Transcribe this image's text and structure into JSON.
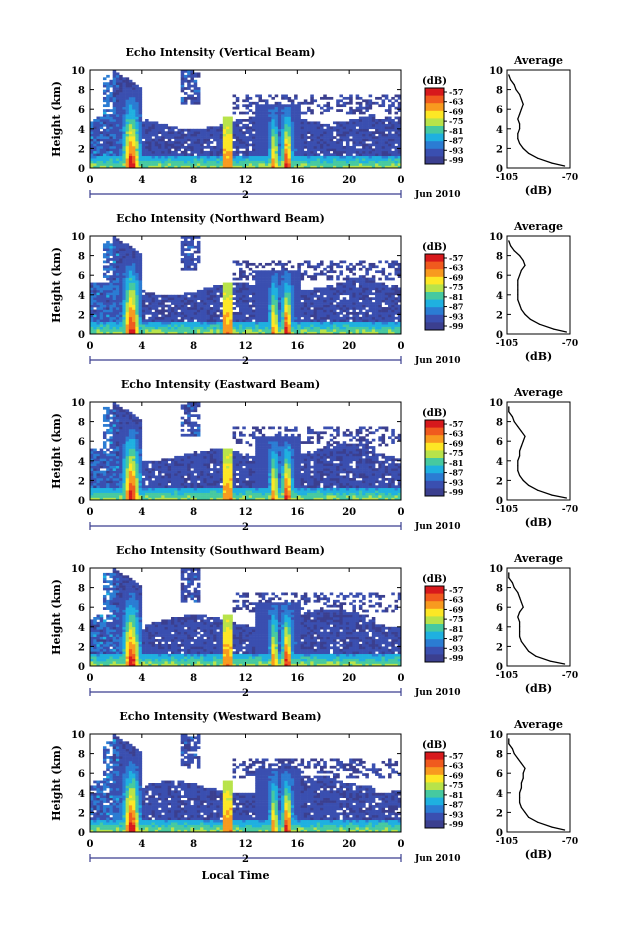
{
  "figure": {
    "date_label": "Jun 2010",
    "local_time_label": "Local Time",
    "colorbar_unit": "(dB)",
    "colorbar_ticks": [
      "-57",
      "-63",
      "-69",
      "-75",
      "-81",
      "-87",
      "-93",
      "-99"
    ],
    "colorbar_colors": [
      "#ffffff",
      "#d7191c",
      "#f05a1e",
      "#f89a1f",
      "#fde725",
      "#b8e34a",
      "#46c9a0",
      "#1fb0e0",
      "#2b7cd3",
      "#3a4fb0",
      "#3b3f8f"
    ],
    "average_title": "Average",
    "average_xlabel": "(dB)"
  },
  "chart_data": [
    {
      "type": "heatmap",
      "title": "Echo Intensity (Vertical Beam)",
      "ylabel": "Height (km)",
      "x": [
        0,
        4,
        8,
        12,
        16,
        20,
        0
      ],
      "x_ticks": [
        "0",
        "4",
        "8",
        "12",
        "16",
        "20",
        "0"
      ],
      "x_secondary_ticks": [
        "",
        "2"
      ],
      "ylim": [
        0,
        10
      ],
      "y_ticks": [
        "0",
        "2",
        "4",
        "6",
        "8",
        "10"
      ],
      "color_range_db": [
        -99,
        -57
      ],
      "date_label": "Jun 2010",
      "average_profile": {
        "title": "Average",
        "xlabel": "(dB)",
        "xlim": [
          -105,
          -70
        ],
        "x_ticks": [
          "-105",
          "-70"
        ],
        "y_ticks": [
          "0",
          "2",
          "4",
          "6",
          "8",
          "10"
        ],
        "height_km": [
          0.2,
          0.5,
          1,
          1.5,
          2,
          2.5,
          3,
          3.5,
          4,
          4.5,
          5,
          5.5,
          6,
          6.5,
          7,
          7.5,
          8,
          8.5,
          9,
          9.5
        ],
        "db": [
          -73,
          -80,
          -88,
          -93,
          -96,
          -98,
          -99,
          -99,
          -98,
          -98,
          -99,
          -98,
          -97,
          -96,
          -97,
          -98,
          -100,
          -101,
          -103,
          -104
        ]
      }
    },
    {
      "type": "heatmap",
      "title": "Echo Intensity (Northward Beam)",
      "ylabel": "Height (km)",
      "x": [
        0,
        4,
        8,
        12,
        16,
        20,
        0
      ],
      "x_ticks": [
        "0",
        "4",
        "8",
        "12",
        "16",
        "20",
        "0"
      ],
      "x_secondary_ticks": [
        "",
        "2"
      ],
      "ylim": [
        0,
        10
      ],
      "y_ticks": [
        "0",
        "2",
        "4",
        "6",
        "8",
        "10"
      ],
      "color_range_db": [
        -99,
        -57
      ],
      "date_label": "Jun 2010",
      "average_profile": {
        "title": "Average",
        "xlabel": "(dB)",
        "xlim": [
          -105,
          -70
        ],
        "x_ticks": [
          "-105",
          "-70"
        ],
        "y_ticks": [
          "0",
          "2",
          "4",
          "6",
          "8",
          "10"
        ],
        "height_km": [
          0.2,
          0.5,
          1,
          1.5,
          2,
          2.5,
          3,
          3.5,
          4,
          4.5,
          5,
          5.5,
          6,
          6.5,
          7,
          7.5,
          8,
          8.5,
          9,
          9.5
        ],
        "db": [
          -72,
          -79,
          -87,
          -92,
          -95,
          -97,
          -98,
          -99,
          -99,
          -99,
          -99,
          -99,
          -98,
          -97,
          -95,
          -96,
          -98,
          -101,
          -103,
          -104
        ]
      }
    },
    {
      "type": "heatmap",
      "title": "Echo Intensity (Eastward Beam)",
      "ylabel": "Height (km)",
      "x": [
        0,
        4,
        8,
        12,
        16,
        20,
        0
      ],
      "x_ticks": [
        "0",
        "4",
        "8",
        "12",
        "16",
        "20",
        "0"
      ],
      "x_secondary_ticks": [
        "",
        "2"
      ],
      "ylim": [
        0,
        10
      ],
      "y_ticks": [
        "0",
        "2",
        "4",
        "6",
        "8",
        "10"
      ],
      "color_range_db": [
        -99,
        -57
      ],
      "date_label": "Jun 2010",
      "average_profile": {
        "title": "Average",
        "xlabel": "(dB)",
        "xlim": [
          -105,
          -70
        ],
        "x_ticks": [
          "-105",
          "-70"
        ],
        "y_ticks": [
          "0",
          "2",
          "4",
          "6",
          "8",
          "10"
        ],
        "height_km": [
          0.2,
          0.5,
          1,
          1.5,
          2,
          2.5,
          3,
          3.5,
          4,
          4.5,
          5,
          5.5,
          6,
          6.5,
          7,
          7.5,
          8,
          8.5,
          9,
          9.5
        ],
        "db": [
          -72,
          -80,
          -88,
          -93,
          -96,
          -98,
          -99,
          -99,
          -99,
          -98,
          -98,
          -97,
          -96,
          -95,
          -97,
          -99,
          -101,
          -102,
          -104,
          -104
        ]
      }
    },
    {
      "type": "heatmap",
      "title": "Echo Intensity (Southward Beam)",
      "ylabel": "Height (km)",
      "x": [
        0,
        4,
        8,
        12,
        16,
        20,
        0
      ],
      "x_ticks": [
        "0",
        "4",
        "8",
        "12",
        "16",
        "20",
        "0"
      ],
      "x_secondary_ticks": [
        "",
        "2"
      ],
      "ylim": [
        0,
        10
      ],
      "y_ticks": [
        "0",
        "2",
        "4",
        "6",
        "8",
        "10"
      ],
      "color_range_db": [
        -99,
        -57
      ],
      "date_label": "Jun 2010",
      "average_profile": {
        "title": "Average",
        "xlabel": "(dB)",
        "xlim": [
          -105,
          -70
        ],
        "x_ticks": [
          "-105",
          "-70"
        ],
        "y_ticks": [
          "0",
          "2",
          "4",
          "6",
          "8",
          "10"
        ],
        "height_km": [
          0.2,
          0.5,
          1,
          1.5,
          2,
          2.5,
          3,
          3.5,
          4,
          4.5,
          5,
          5.5,
          6,
          6.5,
          7,
          7.5,
          8,
          8.5,
          9,
          9.5
        ],
        "db": [
          -73,
          -81,
          -89,
          -93,
          -95,
          -97,
          -98,
          -98,
          -98,
          -98,
          -99,
          -98,
          -96,
          -97,
          -98,
          -99,
          -101,
          -102,
          -104,
          -104
        ]
      }
    },
    {
      "type": "heatmap",
      "title": "Echo Intensity (Westward Beam)",
      "ylabel": "Height (km)",
      "x": [
        0,
        4,
        8,
        12,
        16,
        20,
        0
      ],
      "x_ticks": [
        "0",
        "4",
        "8",
        "12",
        "16",
        "20",
        "0"
      ],
      "x_secondary_ticks": [
        "",
        "2"
      ],
      "ylim": [
        0,
        10
      ],
      "y_ticks": [
        "0",
        "2",
        "4",
        "6",
        "8",
        "10"
      ],
      "color_range_db": [
        -99,
        -57
      ],
      "date_label": "Jun 2010",
      "average_profile": {
        "title": "Average",
        "xlabel": "(dB)",
        "xlim": [
          -105,
          -70
        ],
        "x_ticks": [
          "-105",
          "-70"
        ],
        "y_ticks": [
          "0",
          "2",
          "4",
          "6",
          "8",
          "10"
        ],
        "height_km": [
          0.2,
          0.5,
          1,
          1.5,
          2,
          2.5,
          3,
          3.5,
          4,
          4.5,
          5,
          5.5,
          6,
          6.5,
          7,
          7.5,
          8,
          8.5,
          9,
          9.5
        ],
        "db": [
          -73,
          -80,
          -88,
          -93,
          -95,
          -97,
          -98,
          -98,
          -98,
          -97,
          -97,
          -96,
          -96,
          -95,
          -97,
          -99,
          -101,
          -102,
          -104,
          -104
        ]
      }
    }
  ]
}
